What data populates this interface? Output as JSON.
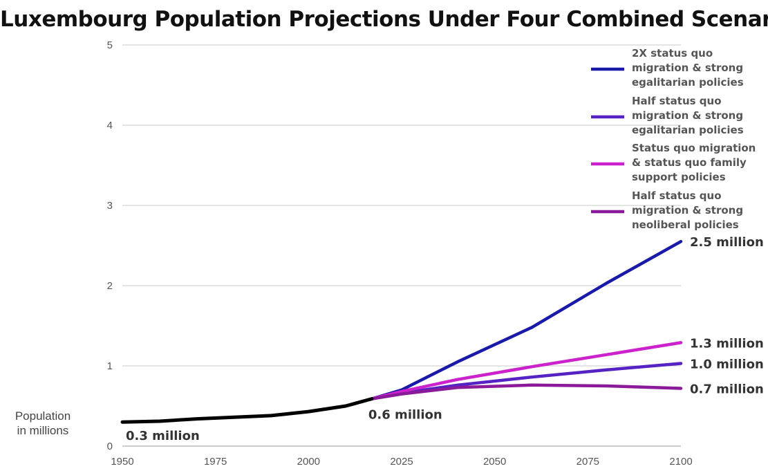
{
  "chart_data": {
    "type": "line",
    "title": "Luxembourg Population Projections Under Four Combined Scenarios",
    "ylabel_lines": [
      "Population",
      "in millions"
    ],
    "xlabel": "",
    "xlim": [
      1950,
      2100
    ],
    "ylim": [
      0,
      5
    ],
    "x_ticks": [
      1950,
      1975,
      2000,
      2025,
      2050,
      2075,
      2100
    ],
    "y_ticks": [
      0,
      1,
      2,
      3,
      4,
      5
    ],
    "grid": "horizontal",
    "legend_position": "top-right",
    "historical": {
      "color": "#000000",
      "points": [
        [
          1950,
          0.3
        ],
        [
          1960,
          0.31
        ],
        [
          1970,
          0.34
        ],
        [
          1980,
          0.36
        ],
        [
          1990,
          0.38
        ],
        [
          2000,
          0.43
        ],
        [
          2010,
          0.5
        ],
        [
          2017,
          0.59
        ]
      ]
    },
    "series": [
      {
        "name": "2X status quo migration & strong egalitarian policies",
        "legend_lines": [
          "2X status quo",
          "migration & strong",
          "egalitarian policies"
        ],
        "color": "#1a1aa8",
        "points": [
          [
            2017,
            0.59
          ],
          [
            2025,
            0.7
          ],
          [
            2040,
            1.05
          ],
          [
            2060,
            1.48
          ],
          [
            2080,
            2.03
          ],
          [
            2100,
            2.55
          ]
        ]
      },
      {
        "name": "Half status quo migration & strong egalitarian policies",
        "legend_lines": [
          "Half status quo",
          "migration & strong",
          "egalitarian policies"
        ],
        "color": "#5522c4",
        "points": [
          [
            2017,
            0.59
          ],
          [
            2025,
            0.66
          ],
          [
            2040,
            0.76
          ],
          [
            2060,
            0.86
          ],
          [
            2080,
            0.95
          ],
          [
            2100,
            1.03
          ]
        ]
      },
      {
        "name": "Status quo migration & status quo family support policies",
        "legend_lines": [
          "Status quo migration",
          "& status quo family",
          "support policies"
        ],
        "color": "#cc22cc",
        "points": [
          [
            2017,
            0.59
          ],
          [
            2025,
            0.68
          ],
          [
            2040,
            0.83
          ],
          [
            2060,
            0.99
          ],
          [
            2080,
            1.14
          ],
          [
            2100,
            1.29
          ]
        ]
      },
      {
        "name": "Half status quo migration & strong neoliberal policies",
        "legend_lines": [
          "Half status quo",
          "migration & strong",
          "neoliberal policies"
        ],
        "color": "#8a1a9a",
        "points": [
          [
            2017,
            0.59
          ],
          [
            2025,
            0.65
          ],
          [
            2040,
            0.73
          ],
          [
            2060,
            0.76
          ],
          [
            2080,
            0.75
          ],
          [
            2100,
            0.72
          ]
        ]
      }
    ],
    "annotations": [
      {
        "text": "0.3 million",
        "x": 1950,
        "y": 0.3,
        "anchor": "below-right"
      },
      {
        "text": "0.6 million",
        "x": 2017,
        "y": 0.59,
        "anchor": "below"
      },
      {
        "text": "2.5 million",
        "x": 2100,
        "y": 2.55,
        "anchor": "right"
      },
      {
        "text": "1.3 million",
        "x": 2100,
        "y": 1.29,
        "anchor": "right"
      },
      {
        "text": "1.0 million",
        "x": 2100,
        "y": 1.03,
        "anchor": "right"
      },
      {
        "text": "0.7 million",
        "x": 2100,
        "y": 0.72,
        "anchor": "right"
      }
    ]
  }
}
